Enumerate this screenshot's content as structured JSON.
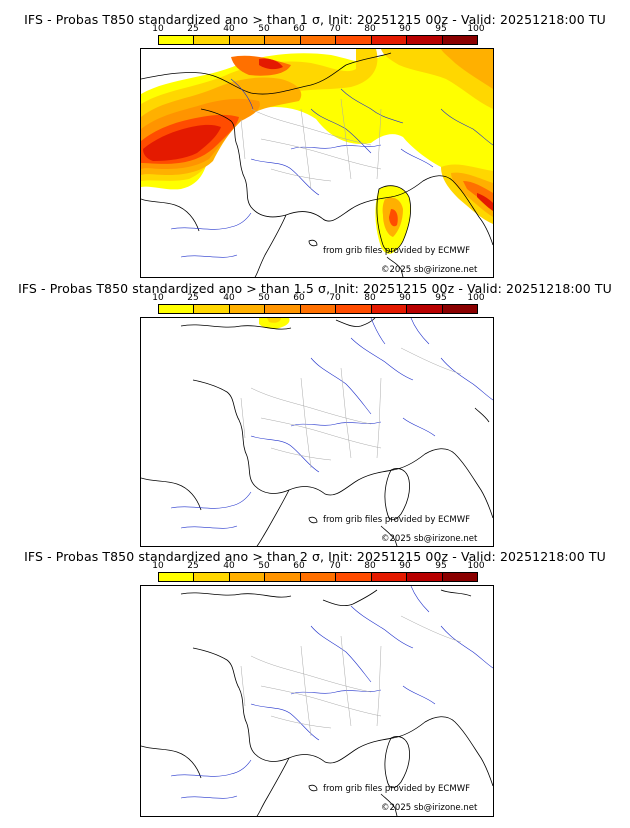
{
  "panels": [
    {
      "title": "IFS - Probas T850  standardized ano > than 1 σ, Init: 20251215 00z - Valid: 20251218:00 TU",
      "threshold": "1 σ"
    },
    {
      "title": "IFS - Probas T850  standardized ano > than 1.5 σ, Init: 20251215 00z - Valid: 20251218:00 TU",
      "threshold": "1.5 σ"
    },
    {
      "title": "IFS - Probas T850  standardized ano > than 2 σ, Init: 20251215 00z - Valid: 20251218:00 TU",
      "threshold": "2 σ"
    }
  ],
  "colorbar": {
    "ticks": [
      "10",
      "25",
      "40",
      "50",
      "60",
      "70",
      "80",
      "90",
      "95",
      "100"
    ],
    "colors": [
      "#ffff00",
      "#ffd700",
      "#ffb000",
      "#ff9400",
      "#ff7000",
      "#ff4c00",
      "#e41a00",
      "#b80000",
      "#8a0000",
      "#520000"
    ]
  },
  "credits": {
    "source": "from grib files provided by ECMWF",
    "copyright": "©2025 sb@irizone.net"
  }
}
